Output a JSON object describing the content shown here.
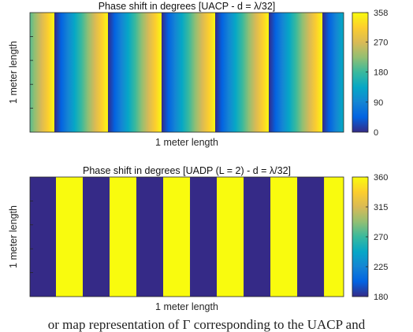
{
  "chart_data": [
    {
      "type": "heatmap",
      "title": "Phase shift in degrees [UACP - d = λ/32]",
      "xlabel": "1 meter length",
      "ylabel": "1 meter length",
      "pattern": "sawtooth",
      "period_fraction": 0.1709,
      "phase_offset": 0.545,
      "orientation": "vertical-stripes",
      "colorbar": {
        "min": 0,
        "max": 358,
        "ticks": [
          0,
          90,
          180,
          270,
          358
        ],
        "colormap": "parula"
      }
    },
    {
      "type": "heatmap",
      "title": "Phase shift in degrees [UADP (L = 2) - d = λ/32]",
      "xlabel": "1 meter length",
      "ylabel": "1 meter length",
      "pattern": "binary-stripes",
      "period_fraction": 0.1709,
      "phase_offset": 0.515,
      "values": [
        360,
        180
      ],
      "orientation": "vertical-stripes",
      "colorbar": {
        "min": 180,
        "max": 360,
        "ticks": [
          180,
          225,
          270,
          315,
          360
        ],
        "colormap": "parula"
      }
    }
  ],
  "caption": "or map representation of Γ corresponding to the UACP and"
}
